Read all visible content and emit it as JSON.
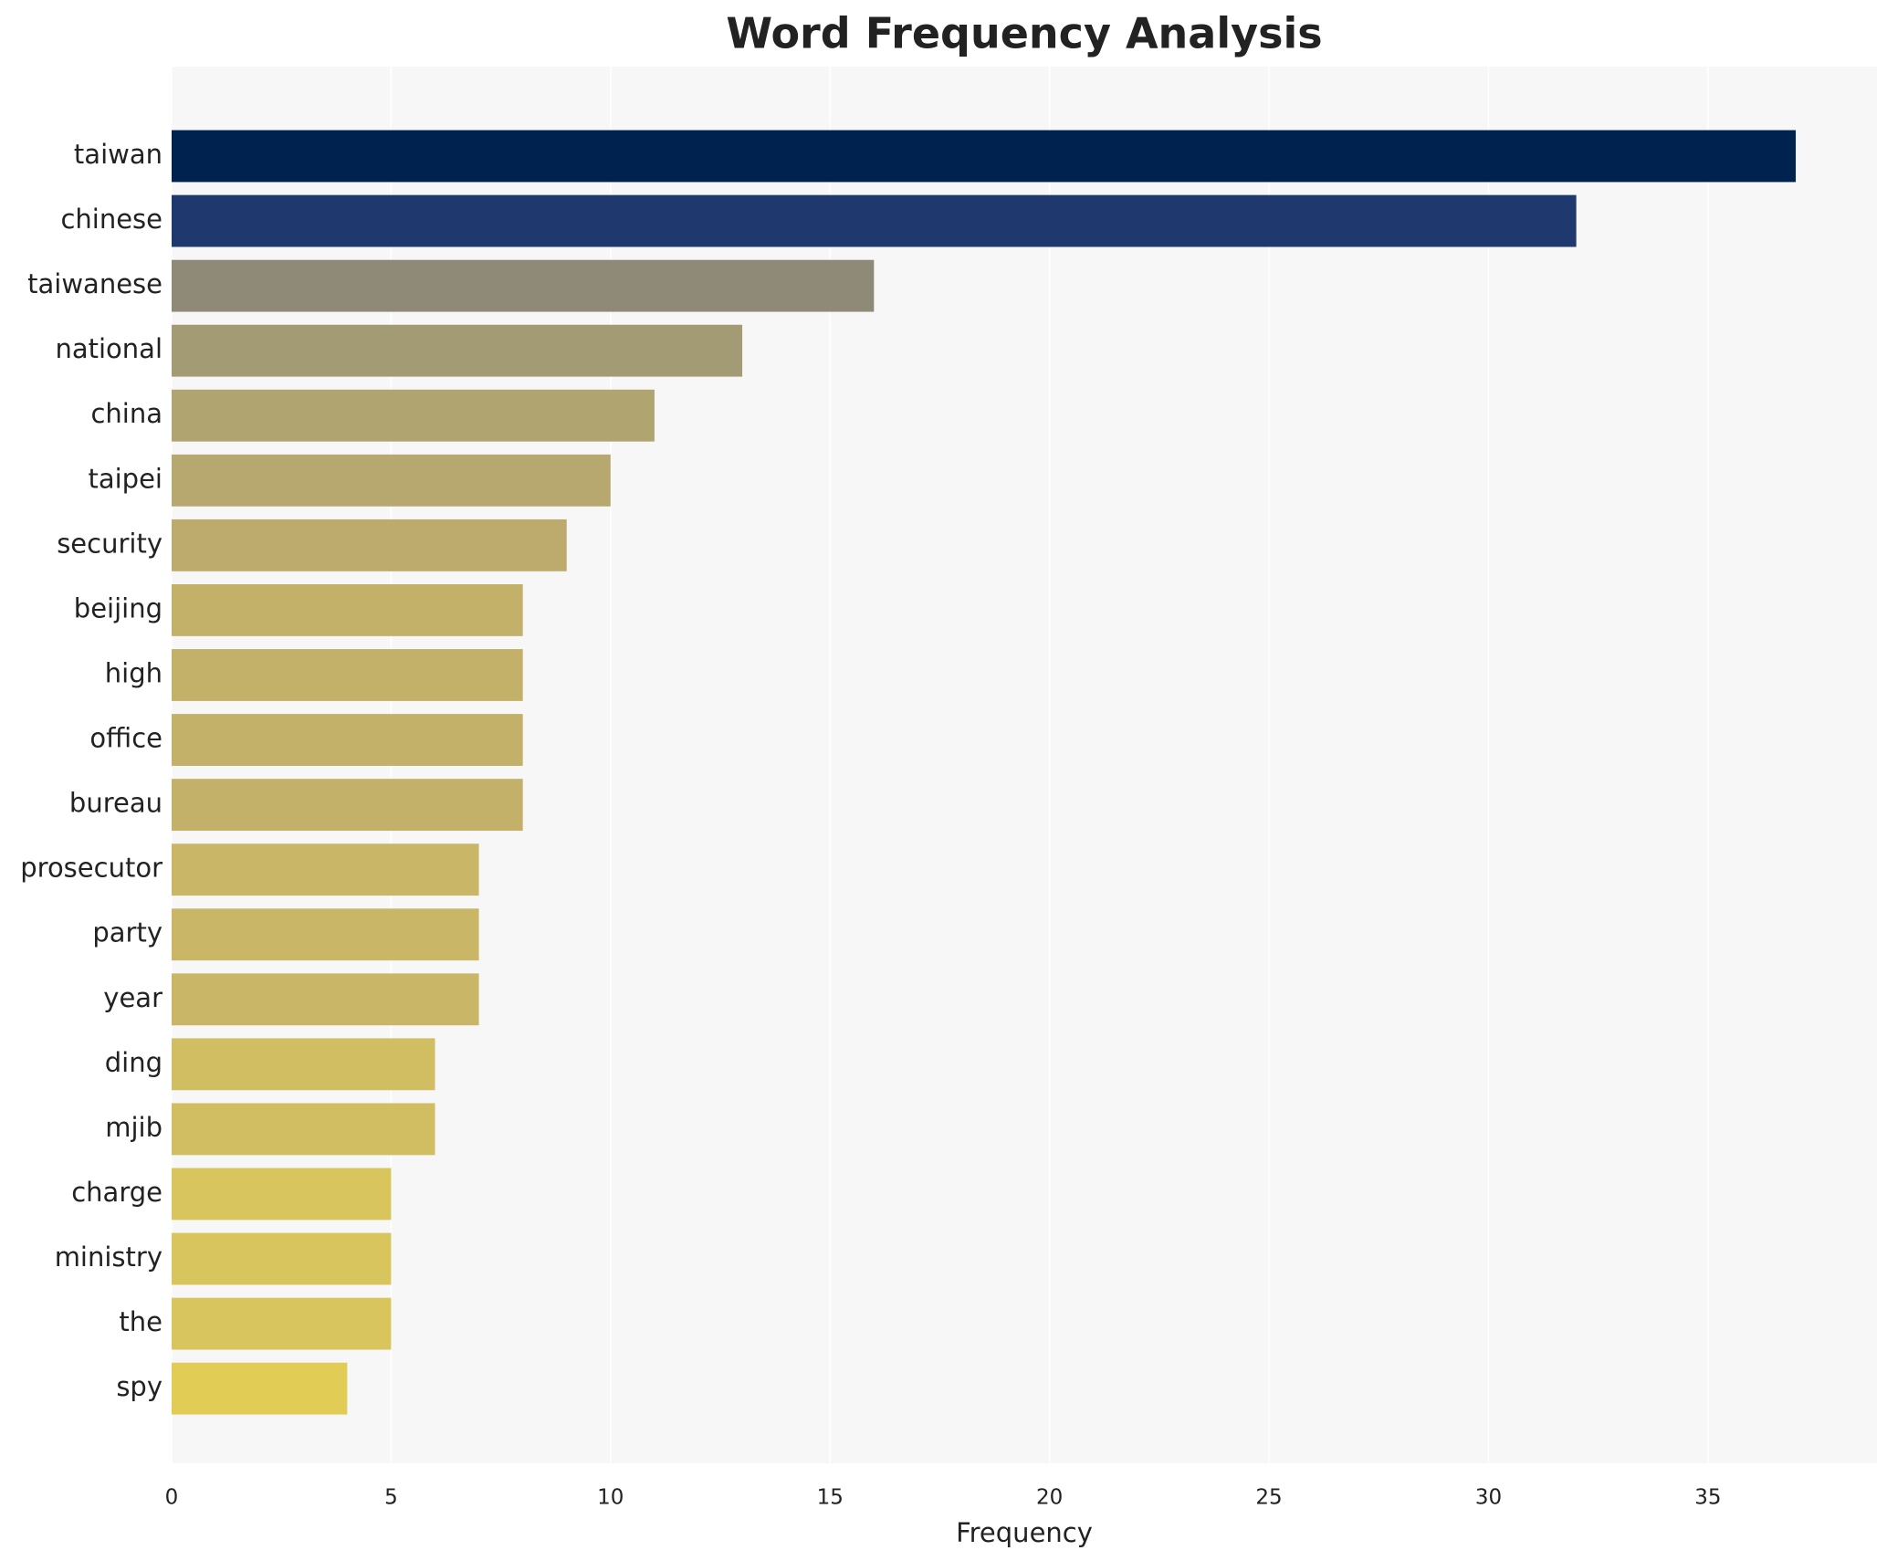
{
  "chart_data": {
    "type": "barh",
    "title": "Word Frequency Analysis",
    "xlabel": "Frequency",
    "categories": [
      "taiwan",
      "chinese",
      "taiwanese",
      "national",
      "china",
      "taipei",
      "security",
      "beijing",
      "high",
      "office",
      "bureau",
      "prosecutor",
      "party",
      "year",
      "ding",
      "mjib",
      "charge",
      "ministry",
      "the",
      "spy"
    ],
    "values": [
      37,
      32,
      16,
      13,
      11,
      10,
      9,
      8,
      8,
      8,
      8,
      7,
      7,
      7,
      6,
      6,
      5,
      5,
      5,
      4
    ],
    "colors": [
      "#00224e",
      "#1f386e",
      "#8f8a77",
      "#a39b74",
      "#b0a470",
      "#b6a86f",
      "#bcab6c",
      "#c3b16a",
      "#c3b16a",
      "#c3b16a",
      "#c3b16a",
      "#c9b767",
      "#c9b767",
      "#c9b767",
      "#d1bd62",
      "#d1bd62",
      "#d9c55d",
      "#d9c55d",
      "#d9c55d",
      "#e1cc55"
    ],
    "xlim": [
      0,
      38.85
    ],
    "xticks": [
      0,
      5,
      10,
      15,
      20,
      25,
      30,
      35
    ],
    "grid": true
  }
}
